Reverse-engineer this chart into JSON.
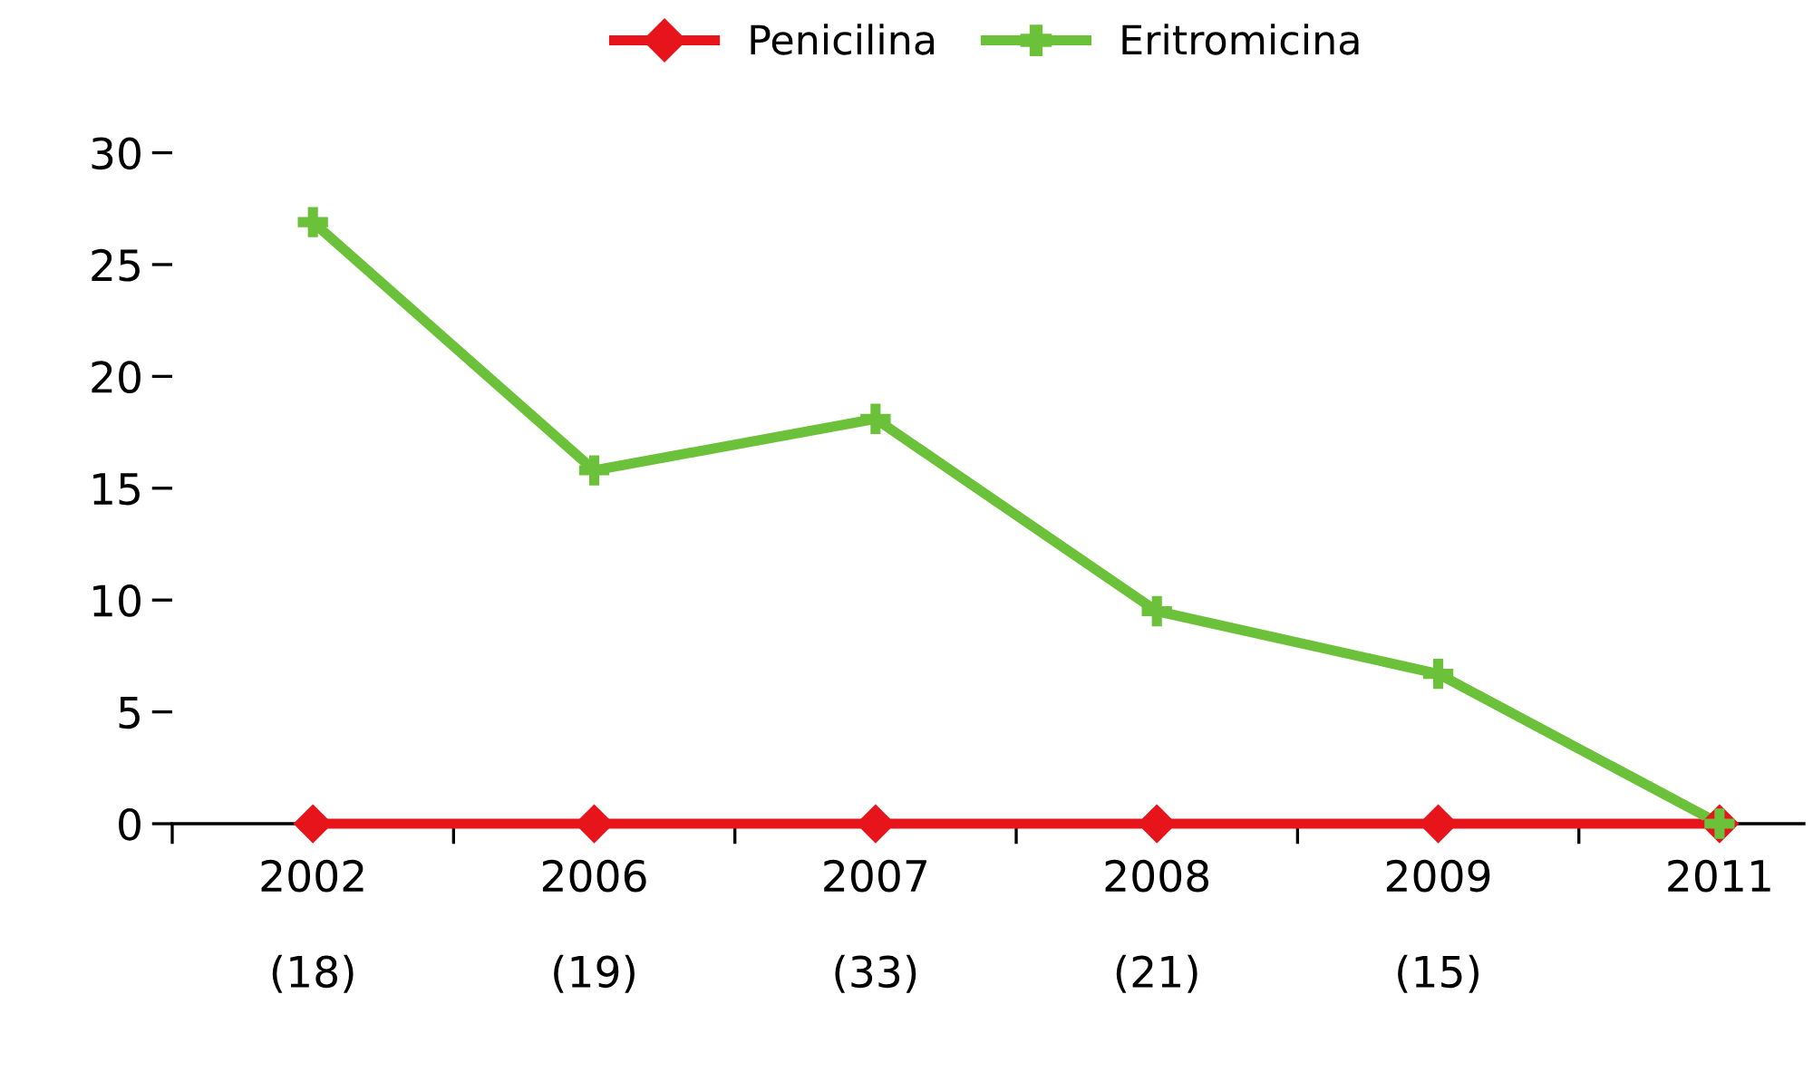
{
  "chart_data": {
    "type": "line",
    "categories": [
      "2002\n\n(18)",
      "2006\n\n(19)",
      "2007\n\n(33)",
      "2008\n\n(21)",
      "2009\n\n(15)",
      "2011"
    ],
    "series": [
      {
        "name": "Penicilina",
        "color": "#e8141b",
        "marker": "diamond",
        "values": [
          0,
          0,
          0,
          0,
          0,
          0
        ]
      },
      {
        "name": "Eritromicina",
        "color": "#6cc13a",
        "marker": "cross",
        "values": [
          26.9,
          15.8,
          18.1,
          9.5,
          6.7,
          0
        ]
      }
    ],
    "ylim": [
      0,
      30
    ],
    "yticks": [
      0,
      5,
      10,
      15,
      20,
      25,
      30
    ],
    "grid": false,
    "legend": "top",
    "line_style": "solid"
  }
}
